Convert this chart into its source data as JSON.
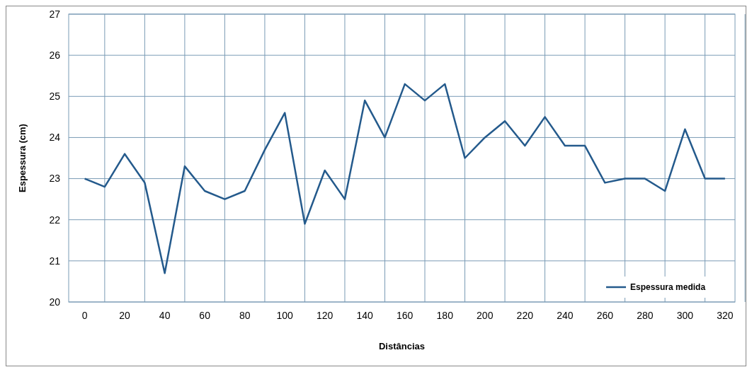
{
  "chart_data": {
    "type": "line",
    "xlabel": "Distâncias",
    "ylabel": "Espessura (cm)",
    "x": [
      0,
      10,
      20,
      30,
      40,
      50,
      60,
      70,
      80,
      90,
      100,
      110,
      120,
      130,
      140,
      150,
      160,
      170,
      180,
      190,
      200,
      210,
      220,
      230,
      240,
      250,
      260,
      270,
      280,
      290,
      300,
      310,
      320
    ],
    "series": [
      {
        "name": "Espessura medida",
        "color": "#245a8c",
        "values": [
          23.0,
          22.8,
          23.6,
          22.9,
          20.7,
          23.3,
          22.7,
          22.5,
          22.7,
          23.7,
          24.6,
          21.9,
          23.2,
          22.5,
          24.9,
          24.0,
          25.3,
          24.9,
          25.3,
          23.5,
          24.0,
          24.4,
          23.8,
          24.5,
          23.8,
          23.8,
          22.9,
          23.0,
          23.0,
          22.7,
          24.2,
          23.0,
          23.0
        ]
      }
    ],
    "xlim": [
      -8,
      325
    ],
    "xticks": [
      0,
      20,
      40,
      60,
      80,
      100,
      120,
      140,
      160,
      180,
      200,
      220,
      240,
      260,
      280,
      300,
      320
    ],
    "ylim": [
      20,
      27
    ],
    "yticks": [
      20,
      21,
      22,
      23,
      24,
      25,
      26,
      27
    ],
    "grid": true,
    "legend": "bottom right",
    "marker": "none",
    "line_style": "solid"
  }
}
